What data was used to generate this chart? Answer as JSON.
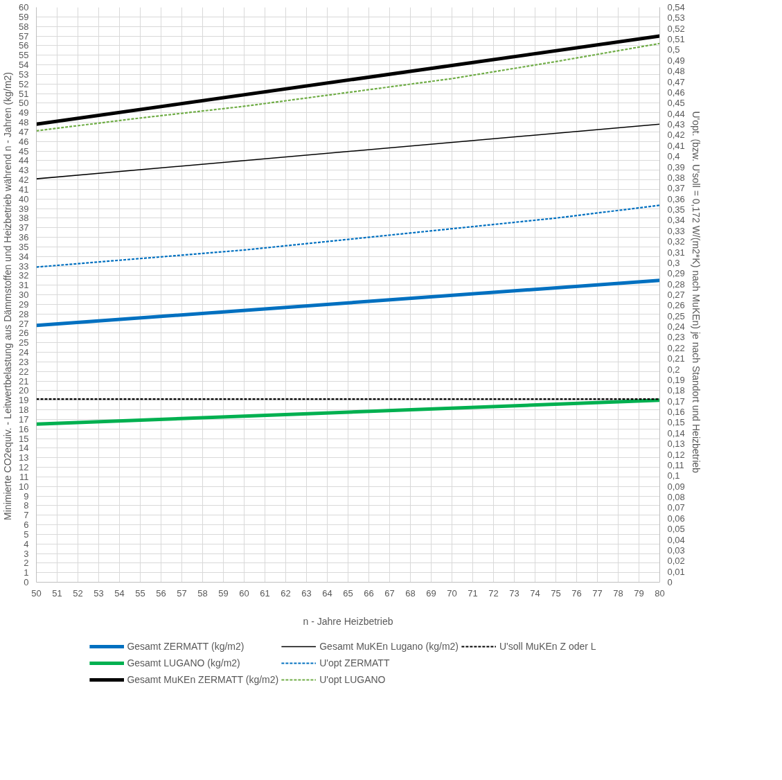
{
  "chart_data": {
    "type": "line",
    "xlabel": "n - Jahre Heizbetrieb",
    "ylabel": "Minimierte  CO2equiv. - Leitwertbelastung aus Dämmstoffen und Heizbetrieb während n - Jahren (kg/m2)",
    "y2label": "U'opt. (bzw.  U'soll = 0,172  W/(m2*K) nach MuKEn) je nach Standort und Heizbetrieb",
    "xlim": [
      50,
      80
    ],
    "xticks": [
      50,
      51,
      52,
      53,
      54,
      55,
      56,
      57,
      58,
      59,
      60,
      61,
      62,
      63,
      64,
      65,
      66,
      67,
      68,
      69,
      70,
      71,
      72,
      73,
      74,
      75,
      76,
      77,
      78,
      79,
      80
    ],
    "ylim": [
      0,
      60
    ],
    "yticks": [
      0,
      1,
      2,
      3,
      4,
      5,
      6,
      7,
      8,
      9,
      10,
      11,
      12,
      13,
      14,
      15,
      16,
      17,
      18,
      19,
      20,
      21,
      22,
      23,
      24,
      25,
      26,
      27,
      28,
      29,
      30,
      31,
      32,
      33,
      34,
      35,
      36,
      37,
      38,
      39,
      40,
      41,
      42,
      43,
      44,
      45,
      46,
      47,
      48,
      49,
      50,
      51,
      52,
      53,
      54,
      55,
      56,
      57,
      58,
      59,
      60
    ],
    "y2lim": [
      0,
      0.54
    ],
    "y2ticks": [
      {
        "value": 0,
        "label": "0"
      },
      {
        "value": 0.01,
        "label": "0,01"
      },
      {
        "value": 0.02,
        "label": "0,02"
      },
      {
        "value": 0.03,
        "label": "0,03"
      },
      {
        "value": 0.04,
        "label": "0,04"
      },
      {
        "value": 0.05,
        "label": "0,05"
      },
      {
        "value": 0.06,
        "label": "0,06"
      },
      {
        "value": 0.07,
        "label": "0,07"
      },
      {
        "value": 0.08,
        "label": "0,08"
      },
      {
        "value": 0.09,
        "label": "0,09"
      },
      {
        "value": 0.1,
        "label": "0,1"
      },
      {
        "value": 0.11,
        "label": "0,11"
      },
      {
        "value": 0.12,
        "label": "0,12"
      },
      {
        "value": 0.13,
        "label": "0,13"
      },
      {
        "value": 0.14,
        "label": "0,14"
      },
      {
        "value": 0.15,
        "label": "0,15"
      },
      {
        "value": 0.16,
        "label": "0,16"
      },
      {
        "value": 0.17,
        "label": "0,17"
      },
      {
        "value": 0.18,
        "label": "0,18"
      },
      {
        "value": 0.19,
        "label": "0,19"
      },
      {
        "value": 0.2,
        "label": "0,2"
      },
      {
        "value": 0.21,
        "label": "0,21"
      },
      {
        "value": 0.22,
        "label": "0,22"
      },
      {
        "value": 0.23,
        "label": "0,23"
      },
      {
        "value": 0.24,
        "label": "0,24"
      },
      {
        "value": 0.25,
        "label": "0,25"
      },
      {
        "value": 0.26,
        "label": "0,26"
      },
      {
        "value": 0.27,
        "label": "0,27"
      },
      {
        "value": 0.28,
        "label": "0,28"
      },
      {
        "value": 0.29,
        "label": "0,29"
      },
      {
        "value": 0.3,
        "label": "0,3"
      },
      {
        "value": 0.31,
        "label": "0,31"
      },
      {
        "value": 0.32,
        "label": "0,32"
      },
      {
        "value": 0.33,
        "label": "0,33"
      },
      {
        "value": 0.34,
        "label": "0,34"
      },
      {
        "value": 0.35,
        "label": "0,35"
      },
      {
        "value": 0.36,
        "label": "0,36"
      },
      {
        "value": 0.37,
        "label": "0,37"
      },
      {
        "value": 0.38,
        "label": "0,38"
      },
      {
        "value": 0.39,
        "label": "0,39"
      },
      {
        "value": 0.4,
        "label": "0,4"
      },
      {
        "value": 0.41,
        "label": "0,41"
      },
      {
        "value": 0.42,
        "label": "0,42"
      },
      {
        "value": 0.43,
        "label": "0,43"
      },
      {
        "value": 0.44,
        "label": "0,44"
      },
      {
        "value": 0.45,
        "label": "0,45"
      },
      {
        "value": 0.46,
        "label": "0,46"
      },
      {
        "value": 0.47,
        "label": "0,47"
      },
      {
        "value": 0.48,
        "label": "0,48"
      },
      {
        "value": 0.49,
        "label": "0,49"
      },
      {
        "value": 0.5,
        "label": "0,5"
      },
      {
        "value": 0.51,
        "label": "0,51"
      },
      {
        "value": 0.52,
        "label": "0,52"
      },
      {
        "value": 0.53,
        "label": "0,53"
      },
      {
        "value": 0.54,
        "label": "0,54"
      }
    ],
    "grid": true,
    "legend": "bottom",
    "marker": "none",
    "series": [
      {
        "name": "Gesamt ZERMATT (kg/m2)",
        "color": "#0070c0",
        "line_style": "solid",
        "x": [
          50,
          80
        ],
        "values": [
          26.8,
          31.5
        ]
      },
      {
        "name": "Gesamt LUGANO (kg/m2)",
        "color": "#00b050",
        "line_style": "solid",
        "x": [
          50,
          80
        ],
        "values": [
          16.5,
          19.0
        ]
      },
      {
        "name": "Gesamt MuKEn ZERMATT (kg/m2)",
        "color": "#000000",
        "line_style": "solid",
        "x": [
          50,
          80
        ],
        "values": [
          47.8,
          57.0
        ]
      },
      {
        "name": "Gesamt MuKEn Lugano (kg/m2)",
        "color": "#000000",
        "line_style": "solid",
        "x": [
          50,
          80
        ],
        "values": [
          42.1,
          47.8
        ]
      },
      {
        "name": "U'opt ZERMATT",
        "color": "#0070c0",
        "line_style": "dashed",
        "axis": "y2",
        "x": [
          50,
          55,
          60,
          65,
          70,
          75,
          80
        ],
        "values": [
          0.296,
          0.304,
          0.312,
          0.322,
          0.332,
          0.342,
          0.354
        ]
      },
      {
        "name": "U'opt LUGANO",
        "color": "#70ad47",
        "line_style": "dashed",
        "axis": "y2",
        "x": [
          50,
          55,
          60,
          65,
          70,
          75,
          80
        ],
        "values": [
          0.424,
          0.436,
          0.447,
          0.46,
          0.473,
          0.489,
          0.506
        ]
      },
      {
        "name": "U'soll MuKEn Z oder L",
        "color": "#000000",
        "line_style": "dashed",
        "axis": "y2",
        "x": [
          50,
          80
        ],
        "values": [
          0.172,
          0.172
        ]
      }
    ]
  }
}
